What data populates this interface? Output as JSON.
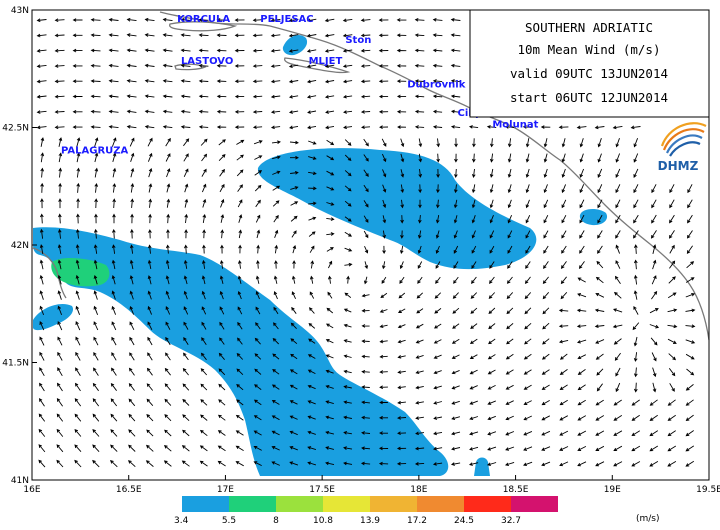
{
  "title_box": {
    "line1": "SOUTHERN ADRIATIC",
    "line2": "10m Mean Wind (m/s)",
    "line3": "valid 09UTC 13JUN2014",
    "line4": "start 06UTC 12JUN2014"
  },
  "logo": {
    "text": "DHMZ",
    "icon": "dhmz-swirl-logo"
  },
  "axes": {
    "lon_range": [
      16.0,
      19.5
    ],
    "lat_range": [
      41.0,
      43.0
    ],
    "lon_ticks": [
      "16E",
      "16.5E",
      "17E",
      "17.5E",
      "18E",
      "18.5E",
      "19E",
      "19.5E"
    ],
    "lat_ticks": [
      "43N",
      "42.5N",
      "42N",
      "41.5N",
      "41N"
    ]
  },
  "places": [
    {
      "name": "KORCULA",
      "lon": 16.75,
      "lat": 42.95
    },
    {
      "name": "PELJESAC",
      "lon": 17.18,
      "lat": 42.95
    },
    {
      "name": "Ston",
      "lon": 17.62,
      "lat": 42.86
    },
    {
      "name": "LASTOVO",
      "lon": 16.77,
      "lat": 42.77
    },
    {
      "name": "MLJET",
      "lon": 17.43,
      "lat": 42.77
    },
    {
      "name": "Dubrovnik",
      "lon": 17.94,
      "lat": 42.67
    },
    {
      "name": "Cilipi",
      "lon": 18.2,
      "lat": 42.55
    },
    {
      "name": "Molunat",
      "lon": 18.38,
      "lat": 42.5
    },
    {
      "name": "PALAGRUZA",
      "lon": 16.15,
      "lat": 42.39
    }
  ],
  "legend": {
    "unit": "(m/s)",
    "bins": [
      {
        "color": "#1a9fe0"
      },
      {
        "color": "#1fd07a"
      },
      {
        "color": "#9be13d"
      },
      {
        "color": "#e6e636"
      },
      {
        "color": "#f0b433"
      },
      {
        "color": "#f08a30"
      },
      {
        "color": "#ff2a1a"
      },
      {
        "color": "#d4126e"
      }
    ],
    "labels": [
      "3.4",
      "5.5",
      "8",
      "10.8",
      "13.9",
      "17.2",
      "24.5",
      "32.7"
    ]
  },
  "colors": {
    "wind_3_4": "#1a9fe0",
    "wind_5_5": "#1fd07a",
    "coast": "#7a7a7a",
    "arrow": "#000000"
  }
}
